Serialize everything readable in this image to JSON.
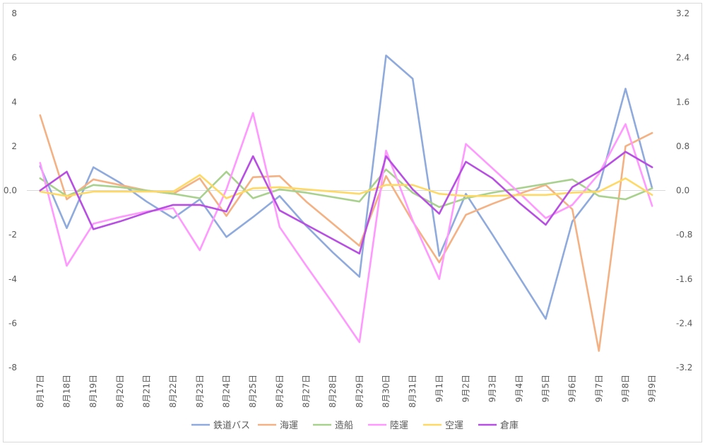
{
  "chart_data": {
    "type": "line",
    "title": "",
    "xlabel": "",
    "ylabel": "",
    "y_left": {
      "ylim": [
        -8,
        8
      ],
      "ticks": [
        "8",
        "6",
        "4",
        "2",
        "0.0",
        "-2",
        "-4",
        "-6",
        "-8"
      ],
      "tick_values": [
        8,
        6,
        4,
        2,
        0,
        -2,
        -4,
        -6,
        -8
      ]
    },
    "y_right": {
      "ylim": [
        -3.2,
        3.2
      ],
      "ticks": [
        "3.2",
        "2.4",
        "1.6",
        "0.8",
        "0.0",
        "-0.8",
        "-1.6",
        "-2.4",
        "-3.2"
      ]
    },
    "grid": false,
    "legend_position": "bottom",
    "categories": [
      "8月17日",
      "8月18日",
      "8月19日",
      "8月20日",
      "8月21日",
      "8月22日",
      "8月23日",
      "8月24日",
      "8月25日",
      "8月26日",
      "8月27日",
      "8月28日",
      "8月29日",
      "8月30日",
      "8月31日",
      "9月1日",
      "9月2日",
      "9月3日",
      "9月4日",
      "9月5日",
      "9月6日",
      "9月7日",
      "9月8日",
      "9月9日"
    ],
    "series": [
      {
        "name": "鉄道バス",
        "color": "#8faadc",
        "values": [
          1.1,
          -1.7,
          1.05,
          0.35,
          -0.5,
          -1.25,
          -0.4,
          -2.1,
          -1.2,
          -0.25,
          -1.6,
          -2.8,
          -3.9,
          6.1,
          5.05,
          -2.95,
          -0.15,
          -2.0,
          -3.9,
          -5.8,
          -1.4,
          0.15,
          4.6,
          0.1
        ]
      },
      {
        "name": "海運",
        "color": "#f4b183",
        "values": [
          3.4,
          -0.4,
          0.5,
          0.25,
          0.0,
          -0.15,
          0.55,
          -1.15,
          0.6,
          0.65,
          -0.5,
          -1.5,
          -2.5,
          0.65,
          -1.4,
          -3.25,
          -1.1,
          -0.6,
          -0.15,
          0.25,
          -0.85,
          -7.25,
          2.0,
          2.6
        ]
      },
      {
        "name": "造船",
        "color": "#a9d18e",
        "values": [
          0.55,
          -0.25,
          0.25,
          0.15,
          0.0,
          -0.15,
          -0.35,
          0.85,
          -0.35,
          0.05,
          -0.1,
          -0.3,
          -0.5,
          0.95,
          -0.1,
          -0.75,
          -0.35,
          -0.1,
          0.1,
          0.3,
          0.5,
          -0.25,
          -0.4,
          0.1
        ]
      },
      {
        "name": "陸運",
        "color": "#ff99ff",
        "values": [
          1.25,
          -3.4,
          -1.5,
          -1.2,
          -0.95,
          -0.8,
          -2.7,
          0.05,
          3.5,
          -1.65,
          -3.4,
          -5.1,
          -6.85,
          1.8,
          -1.35,
          -4.0,
          2.1,
          1.0,
          -0.1,
          -1.25,
          -0.65,
          0.75,
          3.0,
          -0.7
        ]
      },
      {
        "name": "空運",
        "color": "#ffd966",
        "values": [
          -0.05,
          -0.25,
          -0.05,
          -0.05,
          -0.05,
          -0.05,
          0.7,
          -0.35,
          0.1,
          0.15,
          0.05,
          -0.05,
          -0.15,
          0.25,
          0.25,
          -0.15,
          -0.25,
          -0.25,
          -0.2,
          -0.2,
          -0.1,
          -0.05,
          0.55,
          -0.2
        ]
      },
      {
        "name": "倉庫",
        "color": "#b84fe3",
        "values": [
          0.0,
          0.85,
          -1.75,
          -1.4,
          -1.0,
          -0.65,
          -0.65,
          -0.95,
          1.55,
          -0.9,
          -1.55,
          -2.2,
          -2.85,
          1.55,
          0.05,
          -1.05,
          1.3,
          0.55,
          -0.55,
          -1.55,
          0.15,
          0.85,
          1.75,
          1.05
        ]
      }
    ]
  }
}
